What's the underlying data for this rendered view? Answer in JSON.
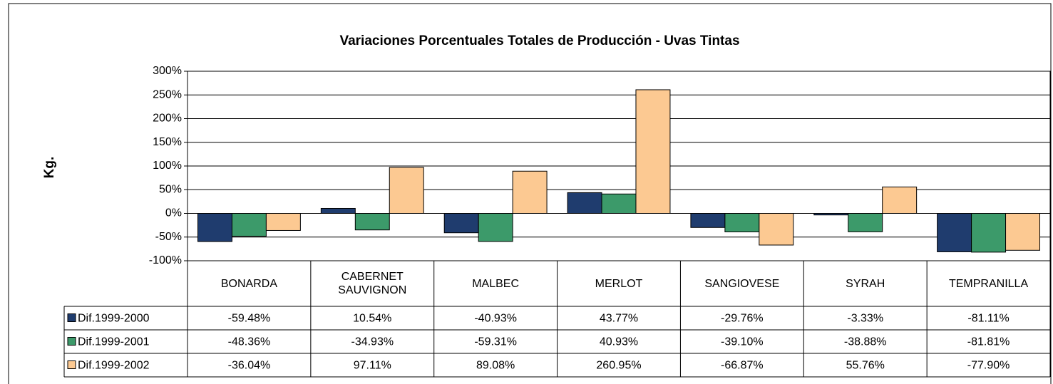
{
  "chart_data": {
    "type": "bar",
    "title": "Variaciones Porcentuales Totales de Producción - Uvas Tintas",
    "y_label": "Kg.",
    "categories": [
      "BONARDA",
      "CABERNET SAUVIGNON",
      "MALBEC",
      "MERLOT",
      "SANGIOVESE",
      "SYRAH",
      "TEMPRANILLA"
    ],
    "series": [
      {
        "name": "Dif.1999-2000",
        "color": "#1f3c6e",
        "values": [
          -59.48,
          10.54,
          -40.93,
          43.77,
          -29.76,
          -3.33,
          -81.11
        ],
        "value_labels": [
          "-59.48%",
          "10.54%",
          "-40.93%",
          "43.77%",
          "-29.76%",
          "-3.33%",
          "-81.11%"
        ]
      },
      {
        "name": "Dif.1999-2001",
        "color": "#3c9a6a",
        "values": [
          -48.36,
          -34.93,
          -59.31,
          40.93,
          -39.1,
          -38.88,
          -81.81
        ],
        "value_labels": [
          "-48.36%",
          "-34.93%",
          "-59.31%",
          "40.93%",
          "-39.10%",
          "-38.88%",
          "-81.81%"
        ]
      },
      {
        "name": "Dif.1999-2002",
        "color": "#fcc992",
        "values": [
          -36.04,
          97.11,
          89.08,
          260.95,
          -66.87,
          55.76,
          -77.9
        ],
        "value_labels": [
          "-36.04%",
          "97.11%",
          "89.08%",
          "260.95%",
          "-66.87%",
          "55.76%",
          "-77.90%"
        ]
      }
    ],
    "ylim": [
      -100,
      300
    ],
    "yticks": [
      {
        "value": -100,
        "label": "-100%"
      },
      {
        "value": -50,
        "label": "-50%"
      },
      {
        "value": 0,
        "label": "0%"
      },
      {
        "value": 50,
        "label": "50%"
      },
      {
        "value": 100,
        "label": "100%"
      },
      {
        "value": 150,
        "label": "150%"
      },
      {
        "value": 200,
        "label": "200%"
      },
      {
        "value": 250,
        "label": "250%"
      },
      {
        "value": 300,
        "label": "300%"
      }
    ],
    "grid": true
  }
}
